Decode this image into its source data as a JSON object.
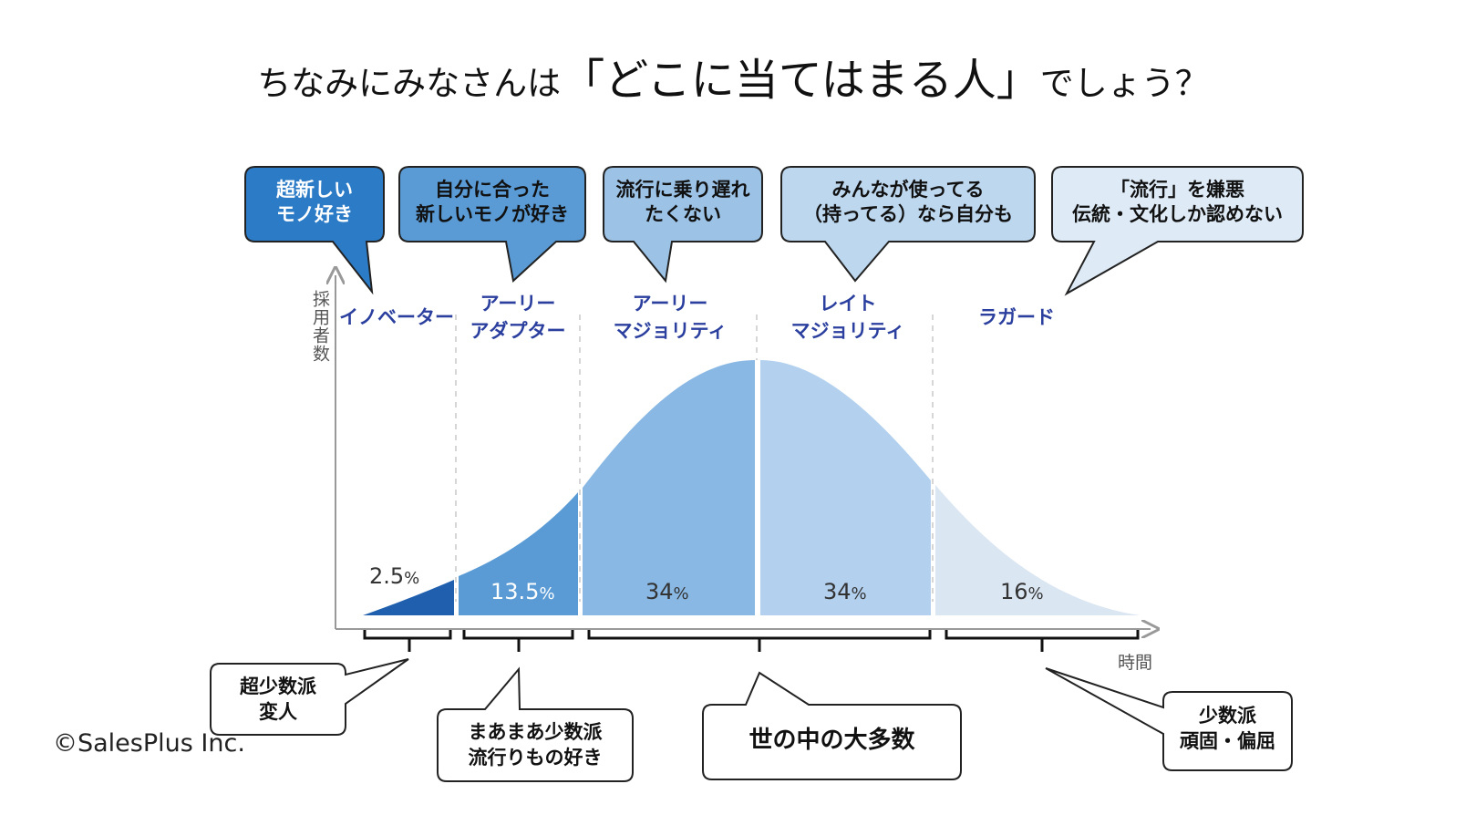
{
  "title": {
    "prefix": "ちなみにみなさんは",
    "emphasis": "「どこに当てはまる人」",
    "suffix": "でしょう？"
  },
  "bubbles": [
    {
      "line1": "超新しい",
      "line2": "モノ好き",
      "fill": "#2c7bc6",
      "text_color": "#ffffff"
    },
    {
      "line1": "自分に合った",
      "line2": "新しいモノが好き",
      "fill": "#5a9bd5",
      "text_color": "#111111"
    },
    {
      "line1": "流行に乗り遅れ",
      "line2": "たくない",
      "fill": "#9cc3e6",
      "text_color": "#111111"
    },
    {
      "line1": "みんなが使ってる",
      "line2": "（持ってる）なら自分も",
      "fill": "#bdd7ee",
      "text_color": "#111111"
    },
    {
      "line1": "「流行」を嫌悪",
      "line2": "伝統・文化しか認めない",
      "fill": "#deebf7",
      "text_color": "#111111"
    }
  ],
  "segments": [
    {
      "line1": "イノベーター",
      "line2": "",
      "percent": 2.5,
      "percent_label": "2.5",
      "fill": "#1f5fae"
    },
    {
      "line1": "アーリー",
      "line2": "アダプター",
      "percent": 13.5,
      "percent_label": "13.5",
      "fill": "#5a9bd5"
    },
    {
      "line1": "アーリー",
      "line2": "マジョリティ",
      "percent": 34,
      "percent_label": "34",
      "fill": "#8ab8e4"
    },
    {
      "line1": "レイト",
      "line2": "マジョリティ",
      "percent": 34,
      "percent_label": "34",
      "fill": "#b3d1ef"
    },
    {
      "line1": "ラガード",
      "line2": "",
      "percent": 16,
      "percent_label": "16",
      "fill": "#dbe6f3"
    }
  ],
  "percent_sign": "%",
  "axis": {
    "y_label": "採用者数",
    "x_label": "時間"
  },
  "callouts": [
    {
      "line1": "超少数派",
      "line2": "変人"
    },
    {
      "line1": "まあまあ少数派",
      "line2": "流行りもの好き"
    },
    {
      "line1": "世の中の大多数",
      "line2": ""
    },
    {
      "line1": "少数派",
      "line2": "頑固・偏屈"
    }
  ],
  "copyright": "©SalesPlus Inc."
}
